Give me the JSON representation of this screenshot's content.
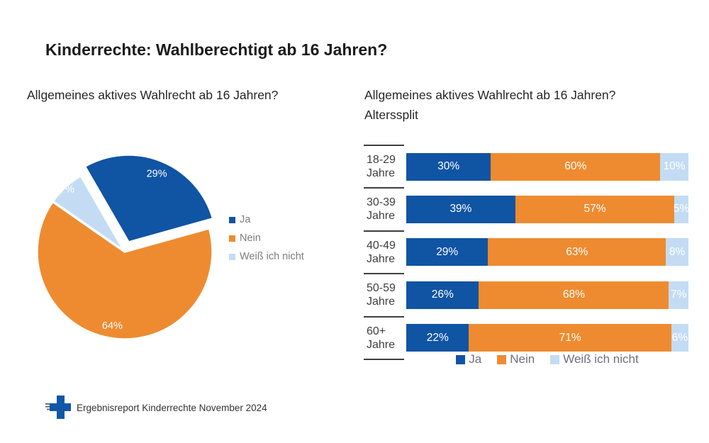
{
  "slide": {
    "title": "Kinderrechte: Wahlberechtigt ab 16 Jahren?"
  },
  "pie_section": {
    "subtitle": "Allgemeines aktives Wahlrecht ab 16 Jahren?"
  },
  "bar_section": {
    "subtitle_line1": "Allgemeines aktives Wahlrecht ab 16 Jahren?",
    "subtitle_line2": "Alterssplit"
  },
  "footer": {
    "logo": "plus-cross-logo",
    "text": "Ergebnisreport Kinderrechte November 2024"
  },
  "colors": {
    "ja": "#1054a4",
    "nein": "#ee8b30",
    "weiss_ich_nicht": "#c3dcf4",
    "legend_text": "#7e7e7e",
    "separator": "#3f3f3f"
  },
  "chart_data": [
    {
      "type": "pie",
      "title": "Allgemeines aktives Wahlrecht ab 16 Jahren?",
      "labels": [
        "Ja",
        "Nein",
        "Weiß ich nicht"
      ],
      "values": [
        29,
        64,
        7
      ],
      "unit": "%",
      "colors": [
        "#1054a4",
        "#ee8b30",
        "#c3dcf4"
      ],
      "legend_position": "right",
      "exploded_slice": "Ja",
      "start_angle_deg": -30
    },
    {
      "type": "bar",
      "subtype": "horizontal-stacked",
      "title": "Allgemeines aktives Wahlrecht ab 16 Jahren? Alterssplit",
      "categories": [
        "18-29 Jahre",
        "30-39 Jahre",
        "40-49 Jahre",
        "50-59 Jahre",
        "60+ Jahre"
      ],
      "series": [
        {
          "name": "Ja",
          "color": "#1054a4",
          "values": [
            30,
            39,
            29,
            26,
            22
          ]
        },
        {
          "name": "Nein",
          "color": "#ee8b30",
          "values": [
            60,
            57,
            63,
            68,
            71
          ]
        },
        {
          "name": "Weiß ich nicht",
          "color": "#c3dcf4",
          "values": [
            10,
            5,
            8,
            7,
            6
          ]
        }
      ],
      "unit": "%",
      "xlim": [
        0,
        100
      ],
      "grid": false,
      "legend_position": "bottom"
    }
  ]
}
